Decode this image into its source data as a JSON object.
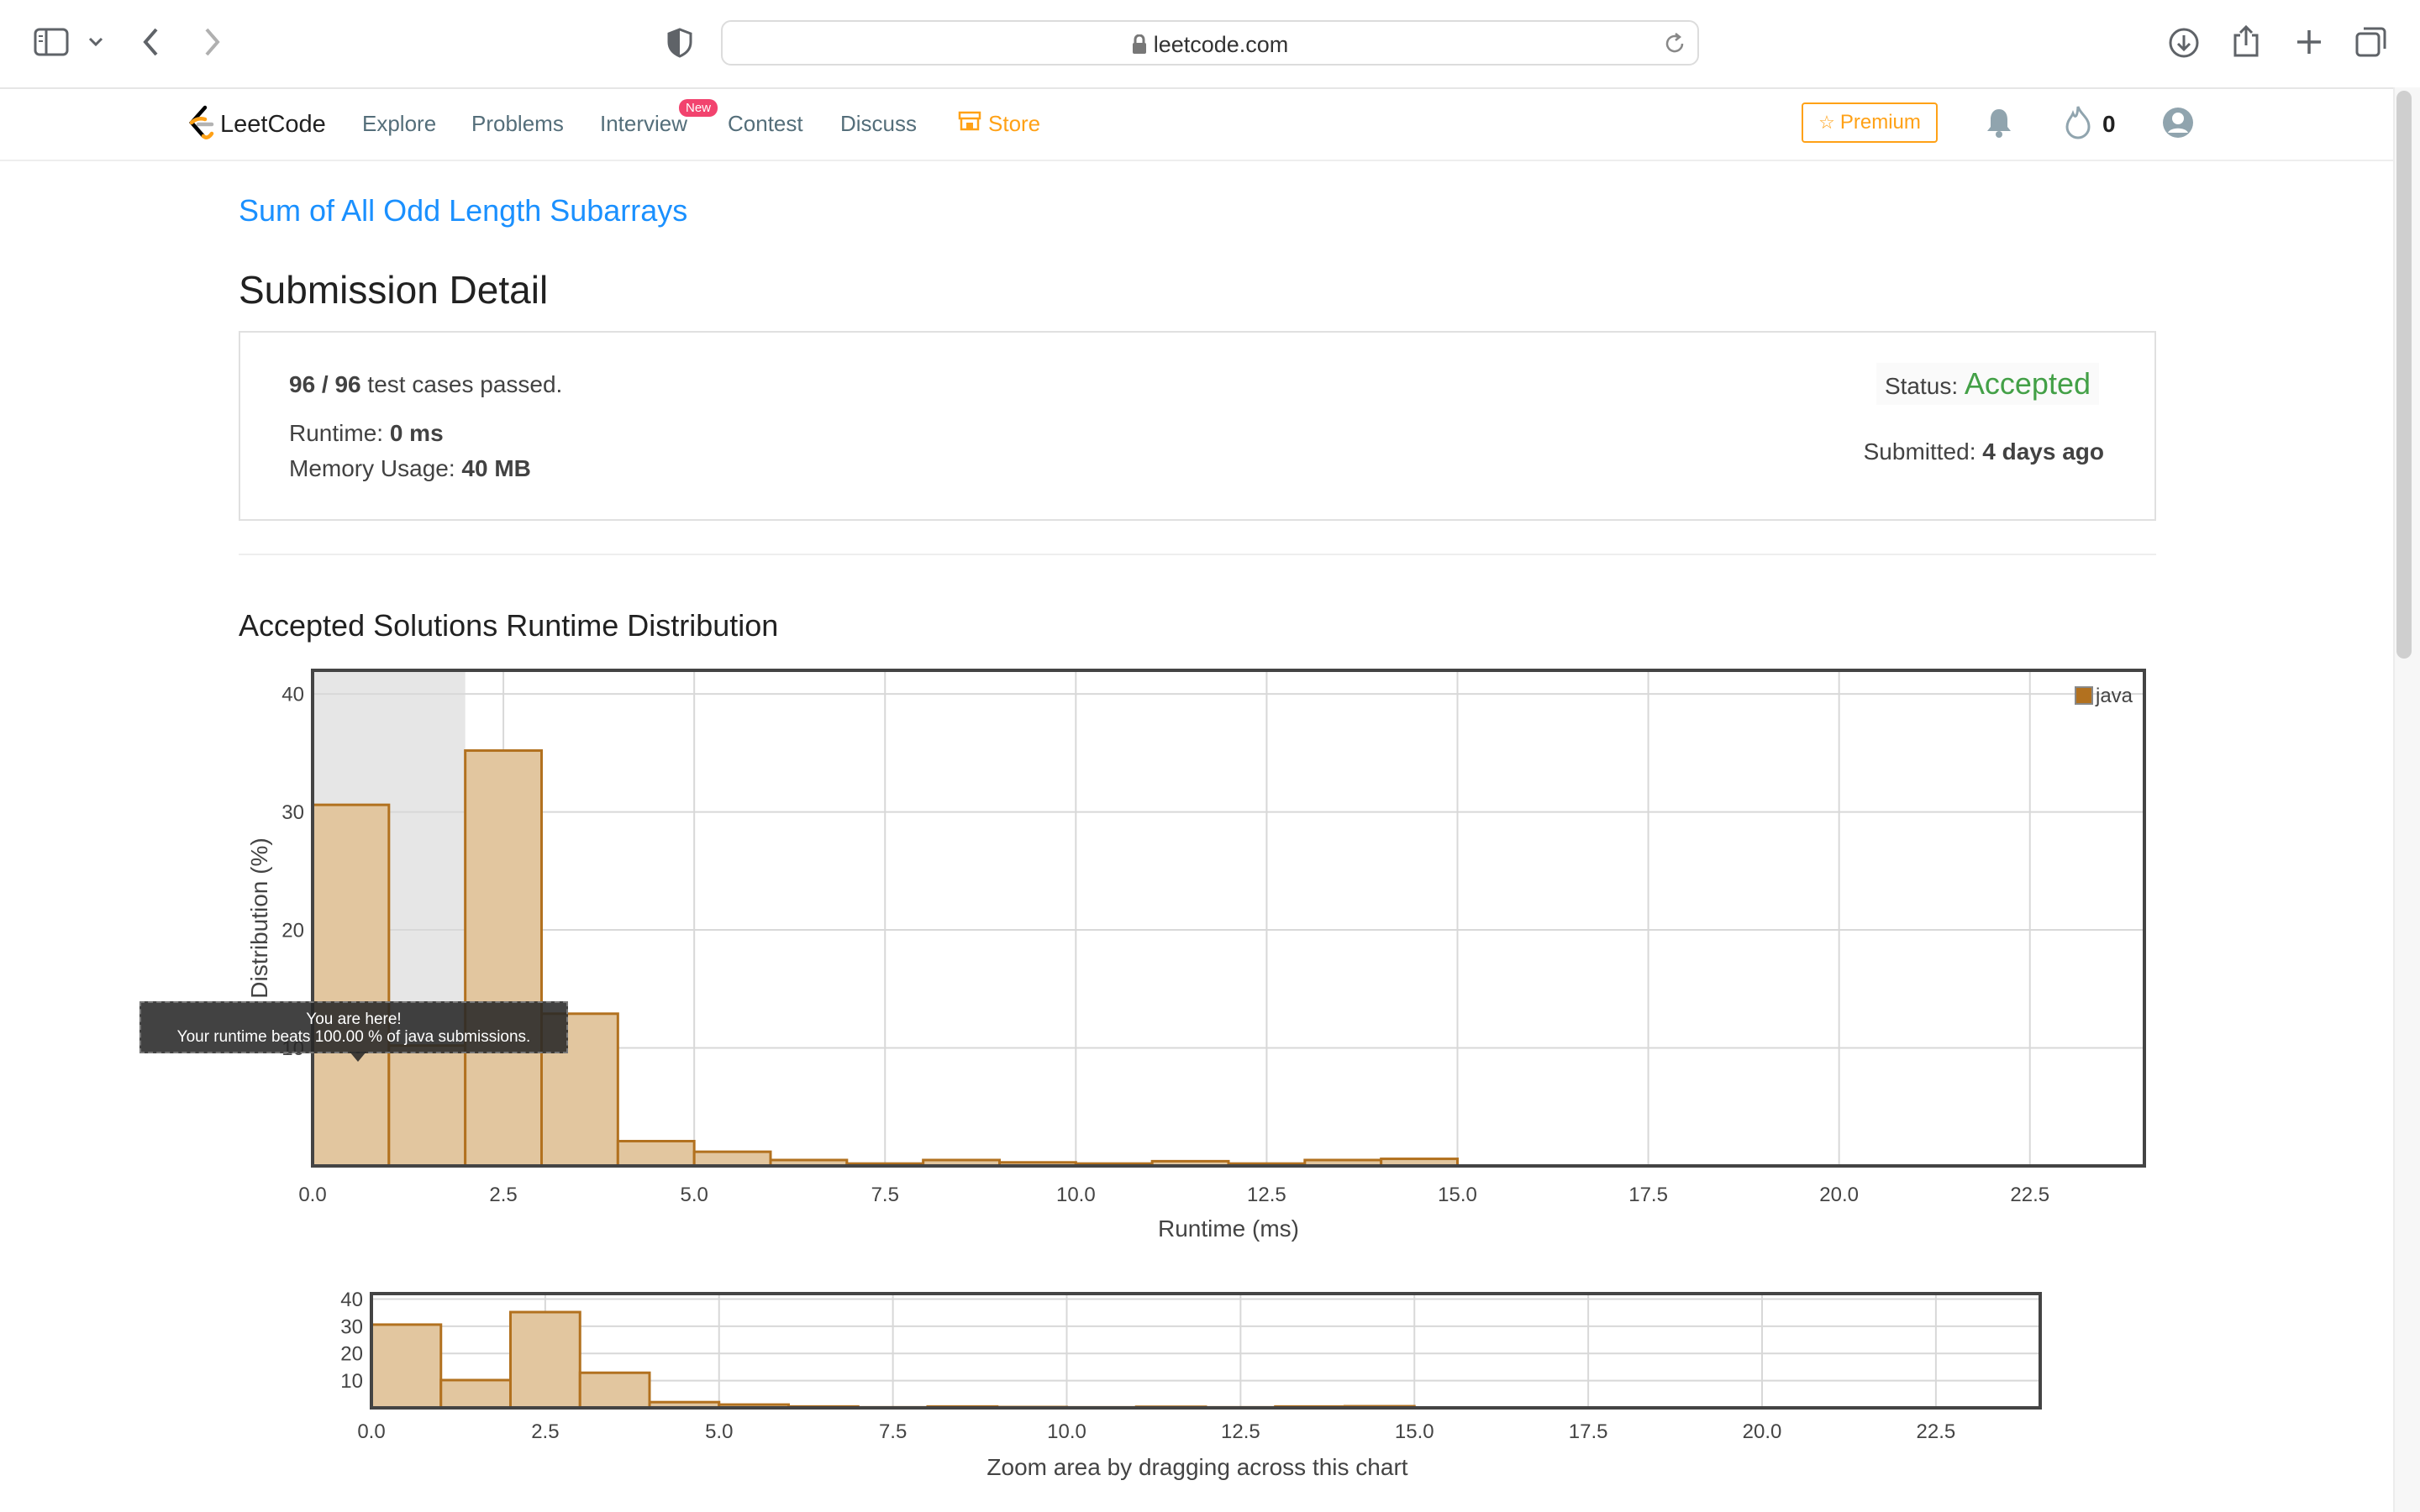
{
  "browser": {
    "url": "leetcode.com"
  },
  "nav": {
    "logo_text": "LeetCode",
    "links": [
      "Explore",
      "Problems",
      "Interview",
      "Contest",
      "Discuss"
    ],
    "new_badge": "New",
    "store": "Store",
    "premium": "Premium",
    "streak_count": "0"
  },
  "problem_link": "Sum of All Odd Length Subarrays",
  "page_title": "Submission Detail",
  "detail": {
    "passed_bold": "96 / 96",
    "passed_rest": " test cases passed.",
    "runtime_label": "Runtime: ",
    "runtime_value": "0 ms",
    "memory_label": "Memory Usage: ",
    "memory_value": "40 MB",
    "status_label": "Status: ",
    "status_value": "Accepted",
    "submitted_label": "Submitted: ",
    "submitted_value": "4 days ago"
  },
  "colors": {
    "accent_blue": "#1a90ff",
    "accepted_green": "#43a047",
    "bar_fill": "#e2c69f",
    "bar_stroke": "#b2711f",
    "store_orange": "#ffa116"
  },
  "section_title": "Accepted Solutions Runtime Distribution",
  "tooltip": {
    "line1": "You are here!",
    "line2": "Your runtime beats 100.00 % of java submissions."
  },
  "zoom_caption": "Zoom area by dragging across this chart",
  "chart_data": [
    {
      "type": "bar",
      "xlabel": "Runtime (ms)",
      "ylabel": "Distribution (%)",
      "xlim": [
        0,
        24
      ],
      "ylim": [
        0,
        42
      ],
      "x_ticks": [
        "0.0",
        "2.5",
        "5.0",
        "7.5",
        "10.0",
        "12.5",
        "15.0",
        "17.5",
        "20.0",
        "22.5"
      ],
      "y_ticks": [
        "10",
        "20",
        "30",
        "40"
      ],
      "grid": true,
      "legend_position": "top-right",
      "highlight_range": [
        0,
        2
      ],
      "series": [
        {
          "name": "java",
          "bin_width": 1,
          "x": [
            0,
            1,
            2,
            3,
            4,
            5,
            6,
            7,
            8,
            9,
            10,
            11,
            12,
            13,
            14
          ],
          "values": [
            30.6,
            10.2,
            35.2,
            12.9,
            2.1,
            1.2,
            0.5,
            0.2,
            0.5,
            0.3,
            0.2,
            0.4,
            0.2,
            0.5,
            0.6
          ]
        }
      ]
    },
    {
      "type": "bar",
      "xlim": [
        0,
        24
      ],
      "ylim": [
        0,
        42
      ],
      "x_ticks": [
        "0.0",
        "2.5",
        "5.0",
        "7.5",
        "10.0",
        "12.5",
        "15.0",
        "17.5",
        "20.0",
        "22.5"
      ],
      "y_ticks": [
        "10",
        "20",
        "30",
        "40"
      ],
      "grid": true,
      "series": [
        {
          "name": "java",
          "bin_width": 1,
          "x": [
            0,
            1,
            2,
            3,
            4,
            5,
            6,
            7,
            8,
            9,
            10,
            11,
            12,
            13,
            14
          ],
          "values": [
            30.6,
            10.2,
            35.2,
            12.9,
            2.1,
            1.2,
            0.5,
            0.2,
            0.5,
            0.3,
            0.2,
            0.4,
            0.2,
            0.5,
            0.6
          ]
        }
      ]
    }
  ]
}
